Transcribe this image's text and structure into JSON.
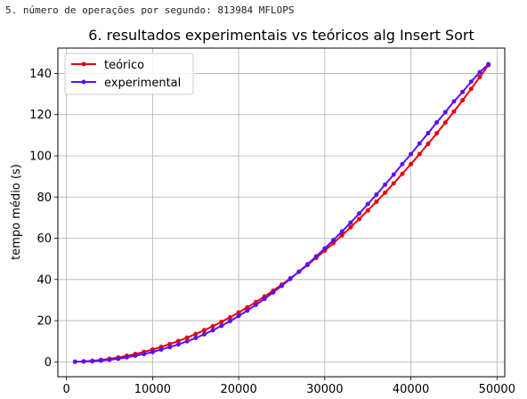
{
  "output": {
    "line": "5. número de operações por segundo: 813984 MFLOPS"
  },
  "chart_data": {
    "type": "line",
    "title": "6. resultados experimentais vs teóricos alg Insert Sort",
    "xlabel": "",
    "ylabel": "tempo médio (s)",
    "xlim": [
      -1000,
      50900
    ],
    "ylim": [
      -7.2,
      152.3
    ],
    "xticks": [
      0,
      10000,
      20000,
      30000,
      40000,
      50000
    ],
    "yticks": [
      0,
      20,
      40,
      60,
      80,
      100,
      120,
      140
    ],
    "grid": true,
    "legend_position": "top-left",
    "x": [
      1000,
      2000,
      3000,
      4000,
      5000,
      6000,
      7000,
      8000,
      9000,
      10000,
      11000,
      12000,
      13000,
      14000,
      15000,
      16000,
      17000,
      18000,
      19000,
      20000,
      21000,
      22000,
      23000,
      24000,
      25000,
      26000,
      27000,
      28000,
      29000,
      30000,
      31000,
      32000,
      33000,
      34000,
      35000,
      36000,
      37000,
      38000,
      39000,
      40000,
      41000,
      42000,
      43000,
      44000,
      45000,
      46000,
      47000,
      48000,
      49000
    ],
    "series": [
      {
        "name": "teórico",
        "color": "#e8000b",
        "values": [
          0.06,
          0.24,
          0.54,
          0.96,
          1.5,
          2.16,
          2.94,
          3.84,
          4.86,
          6.0,
          7.26,
          8.64,
          10.14,
          11.76,
          13.5,
          15.36,
          17.34,
          19.44,
          21.66,
          24.0,
          26.46,
          29.04,
          31.74,
          34.56,
          37.5,
          40.56,
          43.74,
          47.04,
          50.46,
          54.0,
          57.66,
          61.44,
          65.34,
          69.36,
          73.5,
          77.76,
          82.14,
          86.64,
          91.26,
          96.0,
          100.86,
          105.84,
          110.94,
          116.16,
          121.5,
          126.96,
          132.54,
          138.24,
          144.06
        ]
      },
      {
        "name": "experimental",
        "color": "#5a0fff",
        "values": [
          0.1,
          0.2,
          0.3,
          0.6,
          1.0,
          1.5,
          2.2,
          3.0,
          3.8,
          4.8,
          6.0,
          7.2,
          8.5,
          10.0,
          11.6,
          13.4,
          15.4,
          17.5,
          19.8,
          22.3,
          24.9,
          27.7,
          30.6,
          33.7,
          36.9,
          40.3,
          43.8,
          47.4,
          51.2,
          55.1,
          59.1,
          63.3,
          67.6,
          72.0,
          76.6,
          81.2,
          86.0,
          90.9,
          96.0,
          100.8,
          106.0,
          111.0,
          116.2,
          121.2,
          126.4,
          131.0,
          136.0,
          140.6,
          144.5
        ]
      }
    ]
  }
}
